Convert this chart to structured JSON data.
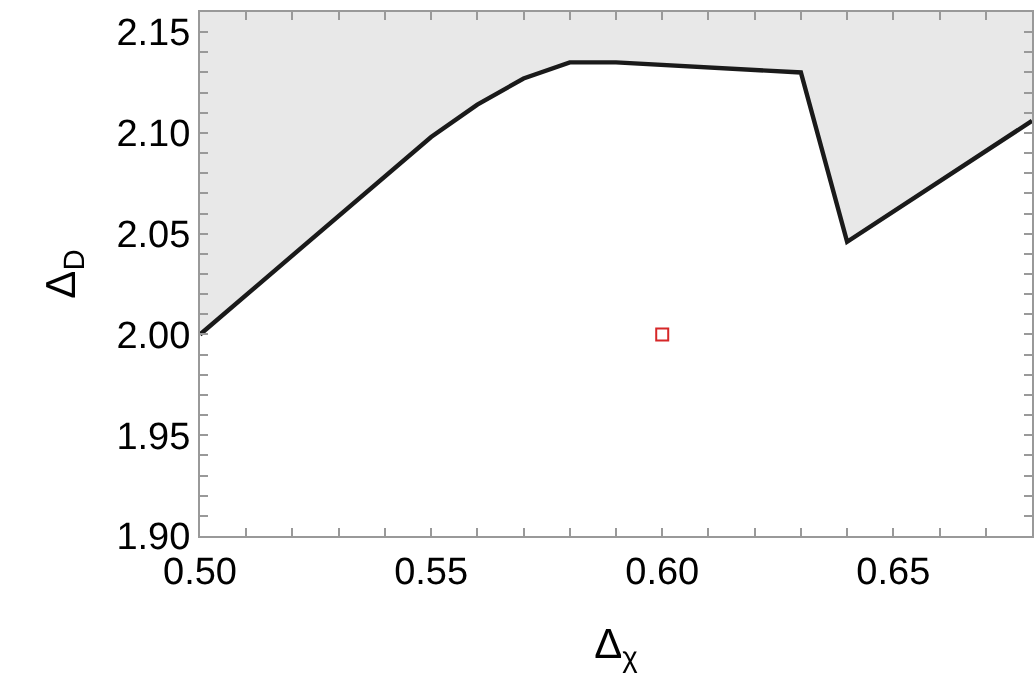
{
  "chart_data": {
    "type": "line",
    "xlabel": "Δ$_{χ}$",
    "ylabel": "Δ$_{D}$",
    "series": [
      {
        "type": "line",
        "color": "#1a1a1a",
        "marker": "none",
        "line_style": "solid",
        "x": [
          0.5,
          0.55,
          0.56,
          0.57,
          0.58,
          0.59,
          0.63,
          0.64,
          0.68
        ],
        "values": [
          2.0,
          2.098,
          2.114,
          2.127,
          2.135,
          2.135,
          2.13,
          2.046,
          2.106
        ],
        "lower": [
          2.0,
          2.098,
          2.114,
          2.127,
          2.135,
          2.135,
          2.13,
          2.046,
          2.106
        ],
        "upper": [
          2.16,
          2.16,
          2.16,
          2.16,
          2.16,
          2.16,
          2.16,
          2.16,
          2.16
        ]
      },
      {
        "type": "scatter",
        "color": "#d62728",
        "marker": "square",
        "x": [
          0.6
        ],
        "values": [
          2.0
        ]
      }
    ],
    "xlim": [
      0.5,
      0.68
    ],
    "xticks": [
      {
        "value": 0.5,
        "label": "0.50"
      },
      {
        "value": 0.51,
        "label": null
      },
      {
        "value": 0.52,
        "label": null
      },
      {
        "value": 0.53,
        "label": null
      },
      {
        "value": 0.54,
        "label": null
      },
      0.55,
      {
        "value": 0.56,
        "label": null
      },
      {
        "value": 0.57,
        "label": null
      },
      {
        "value": 0.58,
        "label": null
      },
      {
        "value": 0.59,
        "label": null
      },
      {
        "value": 0.6,
        "label": "0.60"
      },
      {
        "value": 0.61,
        "label": null
      },
      {
        "value": 0.62,
        "label": null
      },
      {
        "value": 0.63,
        "label": null
      },
      {
        "value": 0.64,
        "label": null
      },
      0.65,
      {
        "value": 0.66,
        "label": null
      },
      {
        "value": 0.67,
        "label": null
      }
    ],
    "ylim": [
      1.9,
      2.16
    ],
    "yticks": [
      {
        "value": 1.9,
        "label": "1.90"
      },
      {
        "value": 1.91,
        "label": null
      },
      {
        "value": 1.92,
        "label": null
      },
      {
        "value": 1.93,
        "label": null
      },
      {
        "value": 1.94,
        "label": null
      },
      1.95,
      {
        "value": 1.96,
        "label": null
      },
      {
        "value": 1.97,
        "label": null
      },
      {
        "value": 1.98,
        "label": null
      },
      {
        "value": 1.99,
        "label": null
      },
      {
        "value": 2,
        "label": "2.00"
      },
      {
        "value": 2.01,
        "label": null
      },
      {
        "value": 2.02,
        "label": null
      },
      {
        "value": 2.03,
        "label": null
      },
      {
        "value": 2.04,
        "label": null
      },
      2.05,
      {
        "value": 2.06,
        "label": null
      },
      {
        "value": 2.07,
        "label": null
      },
      {
        "value": 2.08,
        "label": null
      },
      {
        "value": 2.09,
        "label": null
      },
      {
        "value": 2.1,
        "label": "2.10"
      },
      {
        "value": 2.11,
        "label": null
      },
      {
        "value": 2.12,
        "label": null
      },
      {
        "value": 2.13,
        "label": null
      },
      {
        "value": 2.14,
        "label": null
      },
      2.15
    ],
    "grid": false
  }
}
